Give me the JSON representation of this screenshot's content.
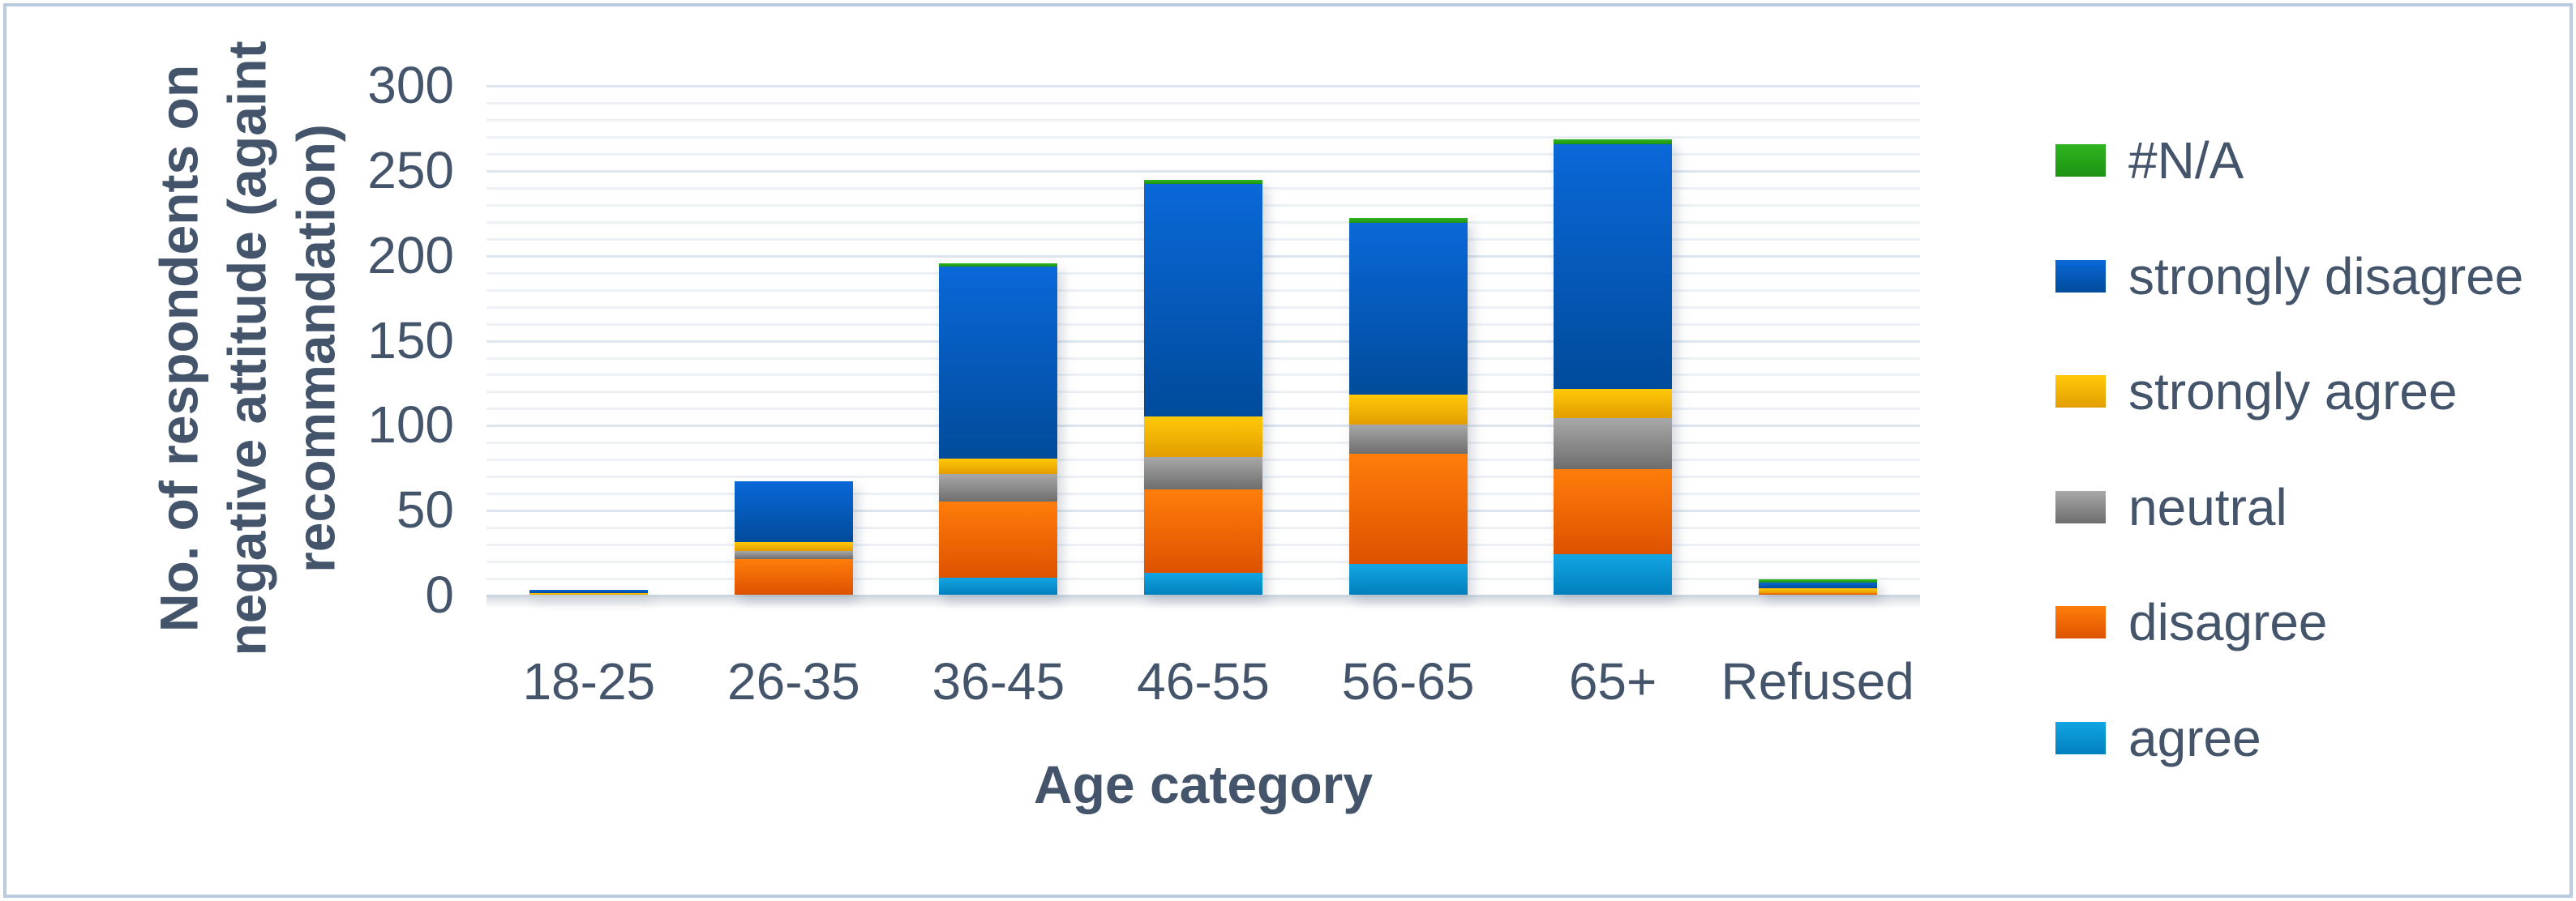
{
  "chart_data": {
    "type": "bar",
    "stacked": true,
    "xlabel": "Age category",
    "ylabel": "No. of respondents on negative attitude (againt recommandation)",
    "ylabel_lines": [
      "No. of respondents on",
      "negative attitude (againt",
      "recommandation)"
    ],
    "categories": [
      "18-25",
      "26-35",
      "36-45",
      "46-55",
      "56-65",
      "65+",
      "Refused"
    ],
    "series": [
      {
        "name": "#N/A",
        "color": "#24a81e",
        "gradient": [
          "#2eb520",
          "#1e9212"
        ],
        "values": [
          0,
          0,
          2,
          2,
          3,
          3,
          2
        ]
      },
      {
        "name": "strongly disagree",
        "color": "#0a64c8",
        "gradient": [
          "#0a68d8",
          "#004b9b"
        ],
        "values": [
          2,
          36,
          113,
          137,
          101,
          144,
          3
        ]
      },
      {
        "name": "strongly agree",
        "color": "#fdbf00",
        "gradient": [
          "#ffc908",
          "#e39d00"
        ],
        "values": [
          1,
          5,
          9,
          24,
          18,
          17,
          3
        ]
      },
      {
        "name": "neutral",
        "color": "#969696",
        "gradient": [
          "#a8a8a8",
          "#6e6e6e"
        ],
        "values": [
          0,
          5,
          16,
          19,
          17,
          30,
          0
        ]
      },
      {
        "name": "disagree",
        "color": "#f06d00",
        "gradient": [
          "#ff7d0a",
          "#dd5200"
        ],
        "values": [
          0,
          21,
          45,
          49,
          65,
          50,
          1
        ]
      },
      {
        "name": "agree",
        "color": "#0d9ed9",
        "gradient": [
          "#14a5e3",
          "#0080bd"
        ],
        "values": [
          0,
          0,
          10,
          13,
          18,
          24,
          0
        ]
      }
    ],
    "ylim": [
      0,
      300
    ],
    "ytick_step": 50,
    "minor_gridline_step": 10,
    "grid": true,
    "legend_position": "right",
    "axis_text_color": "#44546a",
    "frame_border_color": "#b9cbdd"
  }
}
